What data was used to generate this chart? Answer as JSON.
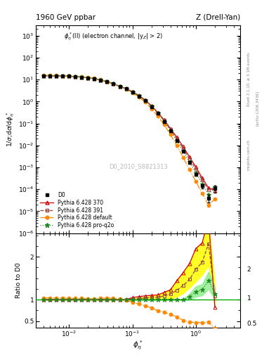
{
  "title_left": "1960 GeV ppbar",
  "title_right": "Z (Drell-Yan)",
  "annotation": "$\\phi_\\eta^*$(ll) (electron channel, |y$_Z$| > 2)",
  "watermark": "D0_2010_S8821313",
  "ylabel_main": "1/$\\sigma$;d$\\sigma$/d$\\phi_\\eta^*$",
  "ylabel_ratio": "Ratio to D0",
  "xlabel": "$\\phi_\\eta^*$",
  "right_label1": "Rivet 3.1.10, ≥ 3.1M events",
  "right_label2": "[arXiv:1306.3436]",
  "right_label3": "mcplots.cern.ch",
  "xlim": [
    0.003,
    5.0
  ],
  "ylim_main": [
    1e-06,
    3000
  ],
  "ylim_ratio": [
    0.35,
    2.55
  ],
  "ratio_yticks": [
    0.5,
    1.0,
    2.0
  ],
  "series": {
    "D0": {
      "color": "#000000",
      "marker": "s",
      "markersize": 3.5,
      "label": "D0",
      "x": [
        0.00398,
        0.00501,
        0.00631,
        0.00794,
        0.01,
        0.01259,
        0.01585,
        0.01995,
        0.02512,
        0.03162,
        0.03981,
        0.05012,
        0.0631,
        0.07943,
        0.1,
        0.12589,
        0.15849,
        0.19953,
        0.25119,
        0.31623,
        0.39811,
        0.50119,
        0.63096,
        0.79433,
        1.0,
        1.25893,
        1.58489,
        2.0
      ],
      "y": [
        14.8,
        14.9,
        14.7,
        14.5,
        14.1,
        13.6,
        13.0,
        12.1,
        11.0,
        9.5,
        7.9,
        6.4,
        4.9,
        3.75,
        2.65,
        1.78,
        1.08,
        0.58,
        0.285,
        0.124,
        0.047,
        0.0164,
        0.0054,
        0.00163,
        0.00048,
        0.000142,
        4e-05,
        0.00011
      ],
      "yerr": [
        0.4,
        0.4,
        0.4,
        0.4,
        0.4,
        0.4,
        0.35,
        0.35,
        0.3,
        0.3,
        0.25,
        0.22,
        0.17,
        0.13,
        0.09,
        0.06,
        0.04,
        0.025,
        0.013,
        0.006,
        0.003,
        0.0012,
        0.0005,
        0.00018,
        7e-05,
        3e-05,
        1.5e-05,
        4e-05
      ]
    },
    "Pythia370": {
      "color": "#cc0000",
      "marker": "^",
      "markersize": 3.5,
      "label": "Pythia 6.428 370",
      "linestyle": "-",
      "x": [
        0.00398,
        0.00501,
        0.00631,
        0.00794,
        0.01,
        0.01259,
        0.01585,
        0.01995,
        0.02512,
        0.03162,
        0.03981,
        0.05012,
        0.0631,
        0.07943,
        0.1,
        0.12589,
        0.15849,
        0.19953,
        0.25119,
        0.31623,
        0.39811,
        0.50119,
        0.63096,
        0.79433,
        1.0,
        1.25893,
        1.58489,
        2.0
      ],
      "y": [
        14.8,
        14.9,
        14.7,
        14.5,
        14.1,
        13.6,
        13.0,
        12.1,
        11.0,
        9.5,
        7.9,
        6.4,
        4.9,
        3.9,
        2.8,
        1.9,
        1.18,
        0.64,
        0.316,
        0.145,
        0.058,
        0.0236,
        0.0088,
        0.003,
        0.00105,
        0.00033,
        0.000115,
        9e-05
      ],
      "ratio": [
        1.0,
        1.0,
        1.0,
        1.0,
        1.0,
        1.0,
        1.0,
        1.0,
        1.0,
        1.0,
        1.0,
        1.0,
        1.0,
        1.0,
        1.05,
        1.07,
        1.09,
        1.1,
        1.11,
        1.17,
        1.23,
        1.44,
        1.63,
        1.84,
        2.19,
        2.32,
        2.88,
        0.82
      ]
    },
    "Pythia391": {
      "color": "#994444",
      "marker": "s",
      "markersize": 3.5,
      "label": "Pythia 6.428 391",
      "linestyle": "--",
      "x": [
        0.00398,
        0.00501,
        0.00631,
        0.00794,
        0.01,
        0.01259,
        0.01585,
        0.01995,
        0.02512,
        0.03162,
        0.03981,
        0.05012,
        0.0631,
        0.07943,
        0.1,
        0.12589,
        0.15849,
        0.19953,
        0.25119,
        0.31623,
        0.39811,
        0.50119,
        0.63096,
        0.79433,
        1.0,
        1.25893,
        1.58489,
        2.0
      ],
      "y": [
        14.8,
        14.9,
        14.7,
        14.5,
        14.1,
        13.6,
        13.0,
        12.1,
        11.0,
        9.5,
        7.9,
        6.4,
        4.9,
        3.85,
        2.73,
        1.84,
        1.12,
        0.61,
        0.3,
        0.135,
        0.053,
        0.02,
        0.0072,
        0.0024,
        0.00082,
        0.000265,
        9.2e-05,
        0.00012
      ],
      "ratio": [
        1.0,
        1.0,
        1.0,
        1.0,
        1.0,
        1.0,
        1.0,
        1.0,
        1.0,
        1.0,
        1.0,
        1.0,
        1.0,
        1.0,
        1.02,
        1.03,
        1.04,
        1.05,
        1.05,
        1.09,
        1.13,
        1.22,
        1.33,
        1.47,
        1.71,
        1.87,
        2.3,
        1.09
      ]
    },
    "PythiaDefault": {
      "color": "#ff8800",
      "marker": "o",
      "markersize": 3.5,
      "label": "Pythia 6.428 default",
      "linestyle": "-.",
      "x": [
        0.00398,
        0.00501,
        0.00631,
        0.00794,
        0.01,
        0.01259,
        0.01585,
        0.01995,
        0.02512,
        0.03162,
        0.03981,
        0.05012,
        0.0631,
        0.07943,
        0.1,
        0.12589,
        0.15849,
        0.19953,
        0.25119,
        0.31623,
        0.39811,
        0.50119,
        0.63096,
        0.79433,
        1.0,
        1.25893,
        1.58489,
        2.0
      ],
      "y": [
        15.4,
        15.5,
        15.3,
        15.0,
        14.5,
        14.0,
        13.4,
        12.4,
        11.3,
        9.8,
        8.2,
        6.6,
        5.0,
        3.7,
        2.5,
        1.6,
        0.93,
        0.47,
        0.212,
        0.088,
        0.031,
        0.0098,
        0.0028,
        0.00078,
        0.000226,
        6.5e-05,
        1.9e-05,
        3.6e-05
      ],
      "ratio": [
        1.04,
        1.04,
        1.04,
        1.04,
        1.03,
        1.03,
        1.03,
        1.02,
        1.02,
        1.03,
        1.04,
        1.03,
        1.02,
        0.99,
        0.94,
        0.9,
        0.86,
        0.81,
        0.74,
        0.71,
        0.66,
        0.6,
        0.52,
        0.48,
        0.47,
        0.46,
        0.48,
        0.33
      ]
    },
    "PythiaProQ2o": {
      "color": "#228822",
      "marker": "*",
      "markersize": 5,
      "label": "Pythia 6.428 pro-q2o",
      "linestyle": ":",
      "x": [
        0.00398,
        0.00501,
        0.00631,
        0.00794,
        0.01,
        0.01259,
        0.01585,
        0.01995,
        0.02512,
        0.03162,
        0.03981,
        0.05012,
        0.0631,
        0.07943,
        0.1,
        0.12589,
        0.15849,
        0.19953,
        0.25119,
        0.31623,
        0.39811,
        0.50119,
        0.63096,
        0.79433,
        1.0,
        1.25893,
        1.58489,
        2.0
      ],
      "y": [
        14.8,
        14.9,
        14.7,
        14.5,
        14.1,
        13.6,
        13.0,
        12.1,
        11.0,
        9.5,
        7.9,
        6.4,
        4.9,
        3.85,
        2.73,
        1.84,
        1.12,
        0.61,
        0.29,
        0.124,
        0.047,
        0.0164,
        0.0054,
        0.00175,
        0.00057,
        0.000175,
        5.8e-05,
        0.000125
      ],
      "ratio": [
        1.0,
        1.0,
        1.0,
        1.0,
        1.0,
        1.0,
        1.0,
        1.0,
        1.0,
        1.0,
        1.0,
        1.0,
        1.0,
        1.0,
        1.0,
        1.0,
        1.0,
        1.0,
        1.0,
        1.0,
        1.0,
        1.0,
        1.0,
        1.07,
        1.19,
        1.23,
        1.45,
        1.14
      ]
    }
  },
  "band_yellow": {
    "x": [
      0.00398,
      0.00501,
      0.00631,
      0.00794,
      0.01,
      0.01259,
      0.01585,
      0.01995,
      0.02512,
      0.03162,
      0.03981,
      0.05012,
      0.0631,
      0.07943,
      0.1,
      0.12589,
      0.15849,
      0.19953,
      0.25119,
      0.31623,
      0.39811,
      0.50119,
      0.63096,
      0.79433,
      1.0,
      1.25893,
      1.58489,
      2.0
    ],
    "y_low": [
      0.99,
      0.99,
      0.99,
      0.99,
      0.99,
      0.99,
      0.99,
      0.99,
      0.99,
      0.99,
      0.99,
      0.99,
      0.99,
      0.99,
      0.99,
      0.99,
      0.99,
      0.99,
      0.99,
      1.0,
      1.02,
      1.07,
      1.15,
      1.28,
      1.42,
      1.58,
      1.8,
      0.9
    ],
    "y_high": [
      1.01,
      1.01,
      1.01,
      1.01,
      1.01,
      1.01,
      1.01,
      1.01,
      1.01,
      1.01,
      1.01,
      1.01,
      1.01,
      1.01,
      1.03,
      1.05,
      1.07,
      1.09,
      1.11,
      1.17,
      1.23,
      1.44,
      1.63,
      1.84,
      2.19,
      2.32,
      2.88,
      1.3
    ]
  },
  "band_green": {
    "x": [
      0.00398,
      0.00501,
      0.00631,
      0.00794,
      0.01,
      0.01259,
      0.01585,
      0.01995,
      0.02512,
      0.03162,
      0.03981,
      0.05012,
      0.0631,
      0.07943,
      0.1,
      0.12589,
      0.15849,
      0.19953,
      0.25119,
      0.31623,
      0.39811,
      0.50119,
      0.63096,
      0.79433,
      1.0,
      1.25893,
      1.58489,
      2.0
    ],
    "y_low": [
      0.99,
      0.99,
      0.99,
      0.99,
      0.99,
      0.99,
      0.99,
      0.99,
      0.99,
      0.99,
      0.99,
      0.99,
      0.99,
      0.99,
      0.99,
      0.99,
      0.99,
      0.99,
      0.99,
      0.99,
      0.99,
      0.99,
      0.99,
      1.0,
      1.07,
      1.1,
      1.25,
      1.0
    ],
    "y_high": [
      1.01,
      1.01,
      1.01,
      1.01,
      1.01,
      1.01,
      1.01,
      1.01,
      1.01,
      1.01,
      1.01,
      1.01,
      1.01,
      1.01,
      1.01,
      1.01,
      1.01,
      1.01,
      1.01,
      1.01,
      1.01,
      1.01,
      1.01,
      1.14,
      1.31,
      1.36,
      1.65,
      1.28
    ]
  }
}
